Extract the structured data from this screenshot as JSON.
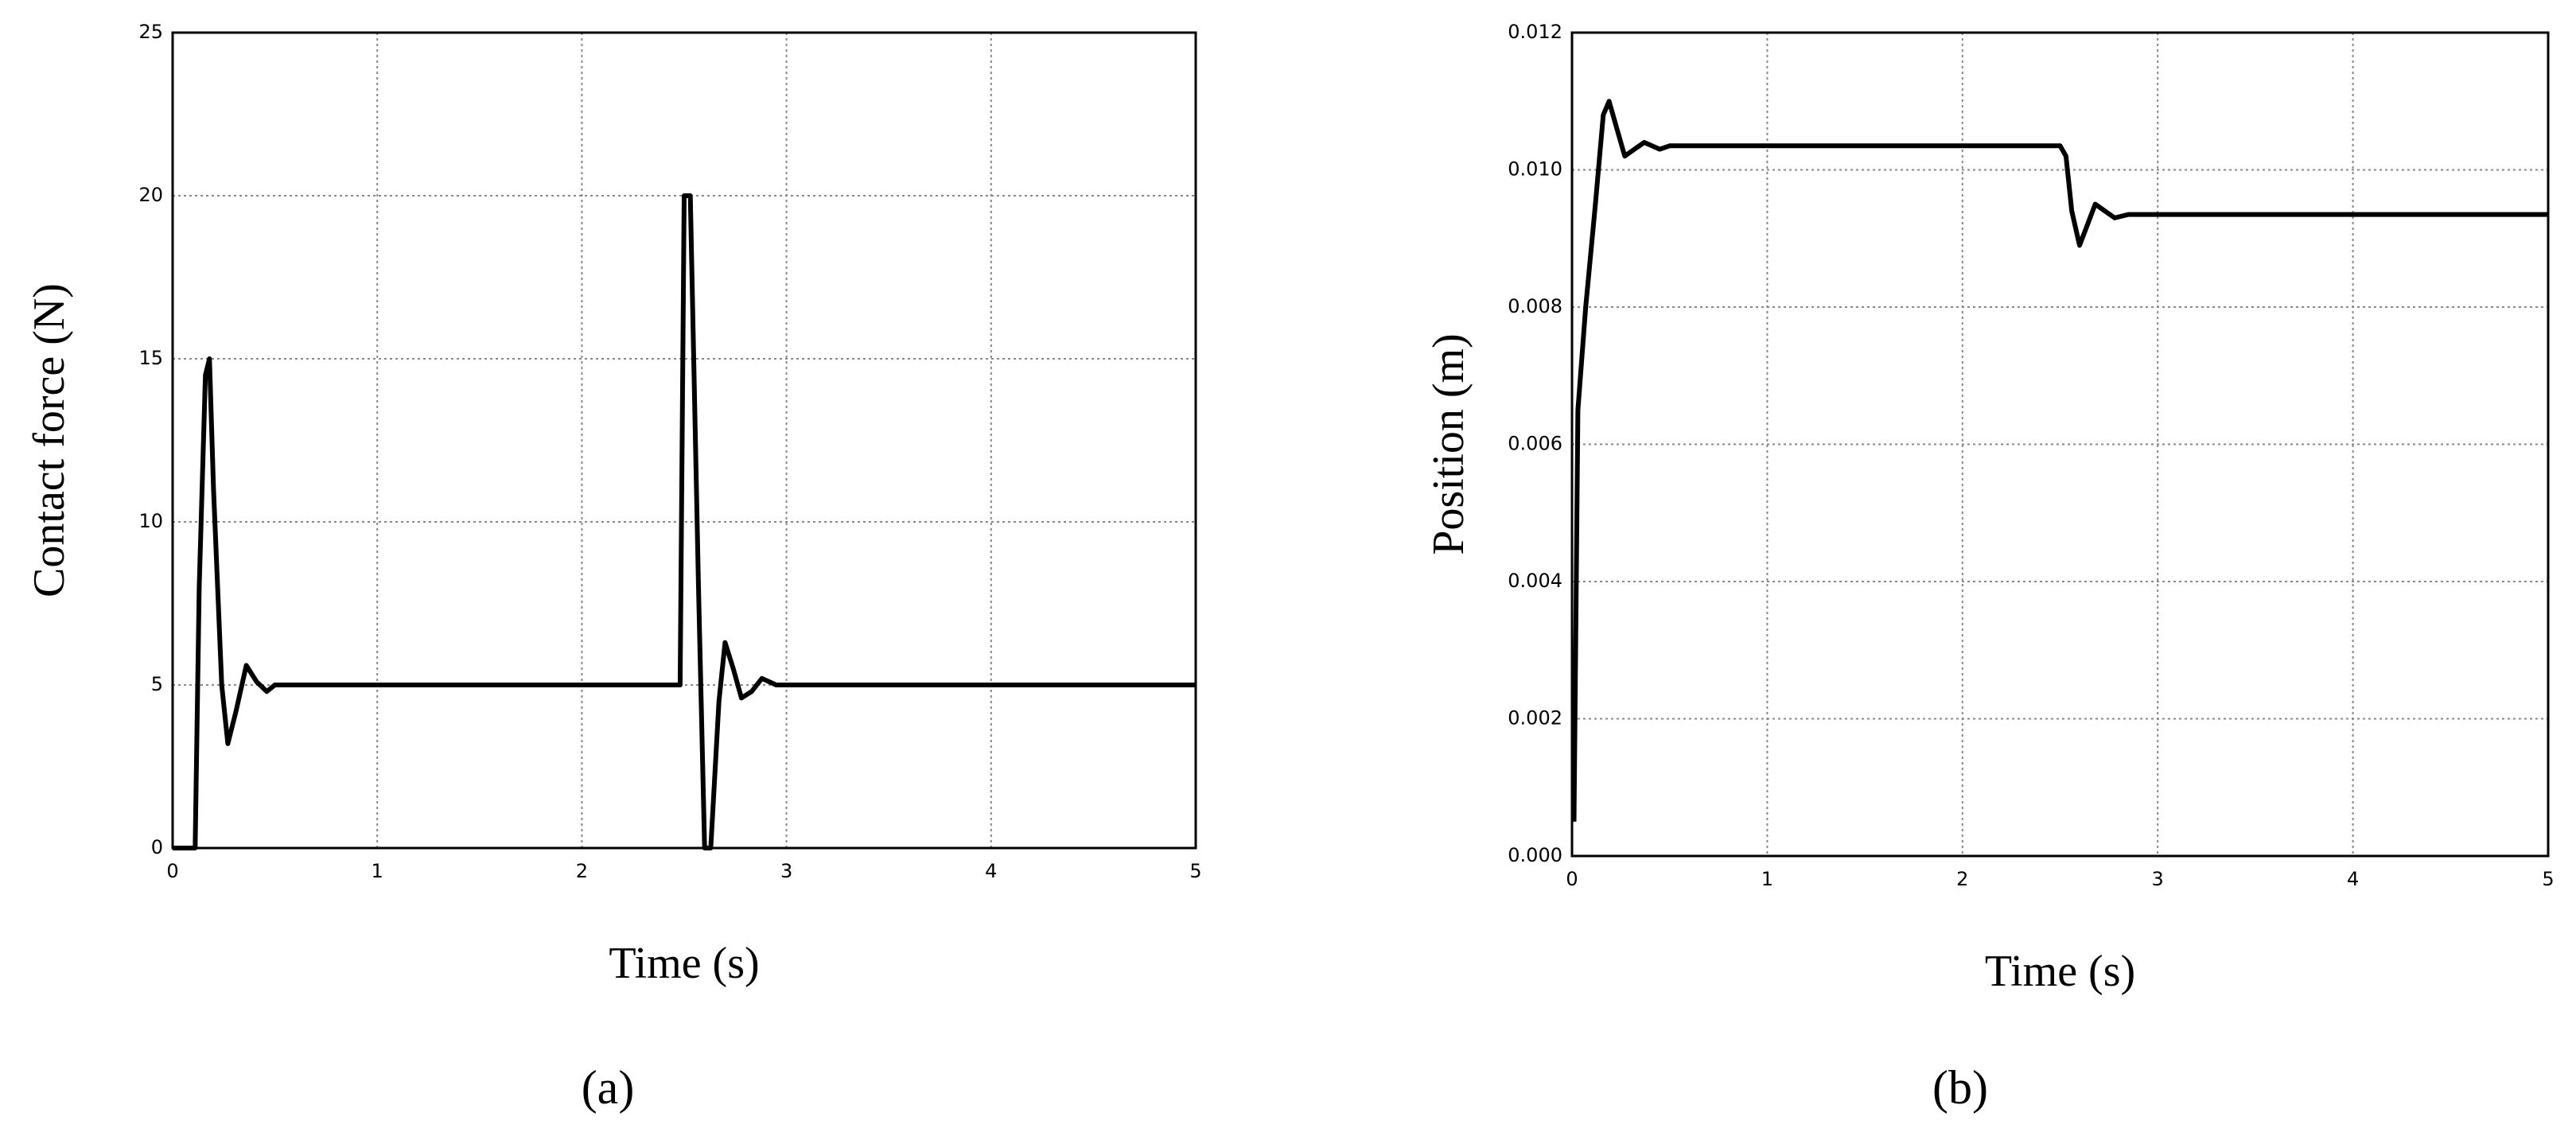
{
  "chart_data": [
    {
      "type": "line",
      "caption": "(a)",
      "xlabel": "Time (s)",
      "ylabel": "Contact force (N)",
      "xlim": [
        0,
        5
      ],
      "xticks": [
        0,
        1,
        2,
        3,
        4,
        5
      ],
      "ylim": [
        0,
        25
      ],
      "yticks": [
        0,
        5,
        10,
        15,
        20,
        25
      ],
      "grid": true,
      "color": "#000000",
      "x": [
        0,
        0.11,
        0.13,
        0.16,
        0.18,
        0.2,
        0.24,
        0.27,
        0.31,
        0.36,
        0.41,
        0.46,
        0.5,
        2.48,
        2.5,
        2.53,
        2.57,
        2.6,
        2.63,
        2.67,
        2.7,
        2.74,
        2.78,
        2.83,
        2.88,
        2.95,
        5
      ],
      "values": [
        0,
        0,
        8,
        14.5,
        15,
        11,
        5,
        3.2,
        4.2,
        5.6,
        5.1,
        4.8,
        5,
        5,
        20,
        20,
        8,
        0,
        0,
        4.5,
        6.3,
        5.5,
        4.6,
        4.8,
        5.2,
        5,
        5
      ]
    },
    {
      "type": "line",
      "caption": "(b)",
      "xlabel": "Time (s)",
      "ylabel": "Position (m)",
      "xlim": [
        0,
        5
      ],
      "xticks": [
        0,
        1,
        2,
        3,
        4,
        5
      ],
      "ylim": [
        0,
        0.012
      ],
      "yticks": [
        {
          "value": 0,
          "label": "0.000"
        },
        {
          "value": 0.002,
          "label": "0.002"
        },
        {
          "value": 0.004,
          "label": "0.004"
        },
        {
          "value": 0.006,
          "label": "0.006"
        },
        {
          "value": 0.008,
          "label": "0.008"
        },
        {
          "value": 0.01,
          "label": "0.010"
        },
        {
          "value": 0.012,
          "label": "0.012"
        }
      ],
      "grid": true,
      "color": "#000000",
      "x": [
        0.01,
        0.03,
        0.07,
        0.12,
        0.16,
        0.19,
        0.23,
        0.27,
        0.32,
        0.37,
        0.45,
        0.5,
        2.5,
        2.53,
        2.56,
        2.6,
        2.64,
        2.68,
        2.73,
        2.78,
        2.85,
        5
      ],
      "values": [
        0.0005,
        0.0065,
        0.008,
        0.0095,
        0.0108,
        0.011,
        0.0106,
        0.0102,
        0.0103,
        0.0104,
        0.0103,
        0.01035,
        0.01035,
        0.0102,
        0.0094,
        0.0089,
        0.0092,
        0.0095,
        0.0094,
        0.0093,
        0.00935,
        0.00935
      ]
    }
  ]
}
